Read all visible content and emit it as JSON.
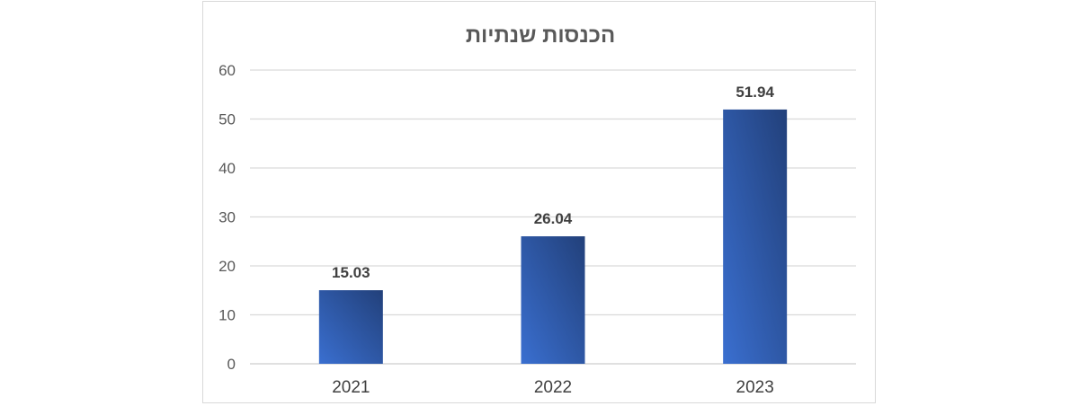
{
  "chart_data": {
    "type": "bar",
    "title": "הכנסות שנתיות",
    "categories": [
      "2021",
      "2022",
      "2023"
    ],
    "values": [
      15.03,
      26.04,
      51.94
    ],
    "data_labels": [
      "15.03",
      "26.04",
      "51.94"
    ],
    "ylim": [
      0,
      60
    ],
    "yticks": [
      "0",
      "10",
      "20",
      "30",
      "40",
      "50",
      "60"
    ],
    "grid": true,
    "legend": "none",
    "colors": {
      "bar_light": "#3a6fd0",
      "bar_dark": "#22407a",
      "grid": "#d9d9d9",
      "axis_text": "#595959"
    }
  }
}
